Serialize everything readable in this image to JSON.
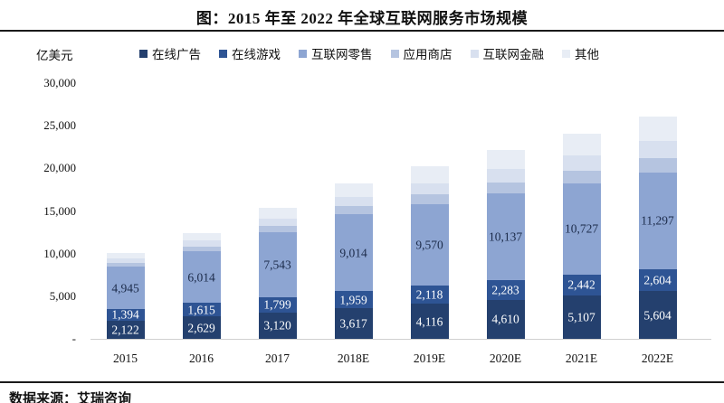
{
  "title": "图：2015 年至 2022 年全球互联网服务市场规模",
  "unit_label": "亿美元",
  "source": "数据来源：艾瑞咨询",
  "colors": {
    "online_ad": "#24406e",
    "online_game": "#2e5494",
    "internet_retail": "#8da5d2",
    "app_store": "#b5c4e0",
    "internet_finance": "#d8e0ef",
    "other": "#e8edf5",
    "rule": "#1a1a1a",
    "axis_line": "#d0d0d0",
    "dark_label_text": "#1c2b4a"
  },
  "chart_data": {
    "type": "bar",
    "stacked": true,
    "title": "图：2015 年至 2022 年全球互联网服务市场规模",
    "ylabel": "亿美元",
    "ylim": [
      0,
      30000
    ],
    "grid": false,
    "legend_position": "top",
    "yticks": [
      {
        "label": "30,000",
        "value": 30000
      },
      {
        "label": "25,000",
        "value": 25000
      },
      {
        "label": "20,000",
        "value": 20000
      },
      {
        "label": "15,000",
        "value": 15000
      },
      {
        "label": "10,000",
        "value": 10000
      },
      {
        "label": "5,000",
        "value": 5000
      },
      {
        "label": "-",
        "value": 0
      }
    ],
    "categories": [
      "2015",
      "2016",
      "2017",
      "2018E",
      "2019E",
      "2020E",
      "2021E",
      "2022E"
    ],
    "series": [
      {
        "name": "在线广告",
        "color": "#24406e",
        "label_color": "#ffffff",
        "labeled": true,
        "values": [
          2122,
          2629,
          3120,
          3617,
          4116,
          4610,
          5107,
          5604
        ]
      },
      {
        "name": "在线游戏",
        "color": "#2e5494",
        "label_color": "#ffffff",
        "labeled": true,
        "values": [
          1394,
          1615,
          1799,
          1959,
          2118,
          2283,
          2442,
          2604
        ]
      },
      {
        "name": "互联网零售",
        "color": "#8da5d2",
        "label_color": "#1c2b4a",
        "labeled": true,
        "values": [
          4945,
          6014,
          7543,
          9014,
          9570,
          10137,
          10727,
          11297
        ]
      },
      {
        "name": "应用商店",
        "color": "#b5c4e0",
        "labeled": false,
        "values": [
          450,
          600,
          800,
          1000,
          1150,
          1350,
          1450,
          1700
        ]
      },
      {
        "name": "互联网金融",
        "color": "#d8e0ef",
        "labeled": false,
        "values": [
          500,
          650,
          870,
          1090,
          1300,
          1550,
          1750,
          2000
        ]
      },
      {
        "name": "其他",
        "color": "#e8edf5",
        "labeled": false,
        "values": [
          690,
          940,
          1270,
          1570,
          2000,
          2270,
          2620,
          2900
        ]
      }
    ]
  }
}
